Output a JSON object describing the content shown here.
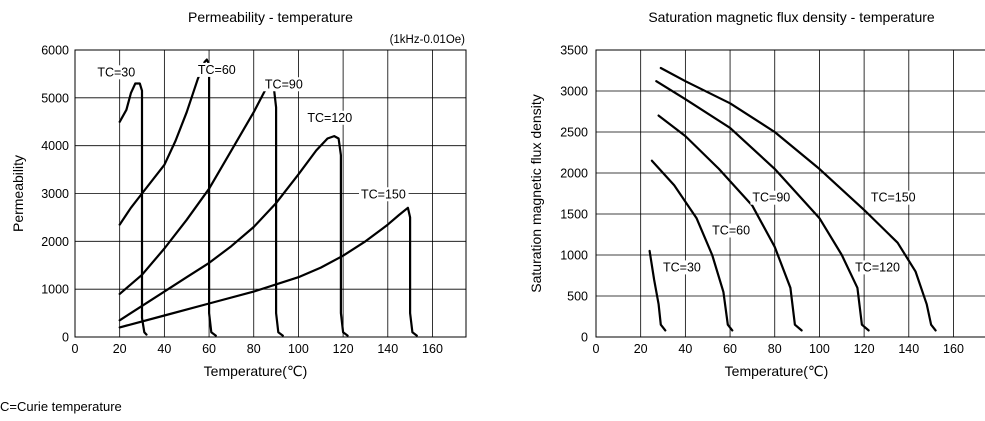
{
  "footnote": "C=Curie temperature",
  "chart_data": [
    {
      "type": "line",
      "title": "Permeability - temperature",
      "subtitle": "(1kHz-0.01Oe)",
      "xlabel": "Temperature(℃)",
      "ylabel": "Permeability",
      "xlim": [
        0,
        175
      ],
      "ylim": [
        0,
        6000
      ],
      "xticks": [
        0,
        20,
        40,
        60,
        80,
        100,
        120,
        140,
        160
      ],
      "yticks": [
        0,
        1000,
        2000,
        3000,
        4000,
        5000,
        6000
      ],
      "grid": true,
      "series": [
        {
          "label": "TC=30",
          "label_at": [
            10,
            5450
          ],
          "points": [
            [
              20,
              4500
            ],
            [
              23,
              4750
            ],
            [
              25,
              5100
            ],
            [
              27,
              5300
            ],
            [
              29,
              5300
            ],
            [
              30,
              5150
            ],
            [
              30,
              2000
            ],
            [
              30,
              400
            ],
            [
              31,
              100
            ],
            [
              32,
              50
            ]
          ]
        },
        {
          "label": "TC=60",
          "label_at": [
            55,
            5500
          ],
          "points": [
            [
              20,
              2350
            ],
            [
              25,
              2700
            ],
            [
              30,
              3000
            ],
            [
              40,
              3600
            ],
            [
              45,
              4100
            ],
            [
              50,
              4700
            ],
            [
              55,
              5400
            ],
            [
              58,
              5750
            ],
            [
              59,
              5800
            ],
            [
              60,
              5700
            ],
            [
              60,
              2000
            ],
            [
              60,
              500
            ],
            [
              61,
              100
            ],
            [
              63,
              30
            ]
          ]
        },
        {
          "label": "TC=90",
          "label_at": [
            85,
            5200
          ],
          "points": [
            [
              20,
              900
            ],
            [
              30,
              1300
            ],
            [
              40,
              1850
            ],
            [
              50,
              2450
            ],
            [
              60,
              3100
            ],
            [
              70,
              3900
            ],
            [
              80,
              4700
            ],
            [
              85,
              5150
            ],
            [
              87,
              5250
            ],
            [
              89,
              5200
            ],
            [
              90,
              4800
            ],
            [
              90,
              2000
            ],
            [
              90,
              500
            ],
            [
              91,
              100
            ],
            [
              93,
              30
            ]
          ]
        },
        {
          "label": "TC=120",
          "label_at": [
            104,
            4500
          ],
          "points": [
            [
              20,
              350
            ],
            [
              30,
              650
            ],
            [
              40,
              950
            ],
            [
              50,
              1250
            ],
            [
              60,
              1550
            ],
            [
              70,
              1900
            ],
            [
              80,
              2300
            ],
            [
              90,
              2800
            ],
            [
              100,
              3400
            ],
            [
              108,
              3900
            ],
            [
              113,
              4150
            ],
            [
              116,
              4200
            ],
            [
              118,
              4150
            ],
            [
              119,
              3800
            ],
            [
              119,
              2000
            ],
            [
              119,
              500
            ],
            [
              120,
              100
            ],
            [
              122,
              30
            ]
          ]
        },
        {
          "label": "TC=150",
          "label_at": [
            128,
            2900
          ],
          "points": [
            [
              20,
              200
            ],
            [
              40,
              450
            ],
            [
              60,
              700
            ],
            [
              80,
              950
            ],
            [
              100,
              1250
            ],
            [
              110,
              1450
            ],
            [
              120,
              1700
            ],
            [
              130,
              2000
            ],
            [
              140,
              2350
            ],
            [
              145,
              2550
            ],
            [
              149,
              2700
            ],
            [
              150,
              2500
            ],
            [
              150,
              2000
            ],
            [
              150,
              500
            ],
            [
              151,
              100
            ],
            [
              153,
              30
            ]
          ]
        }
      ]
    },
    {
      "type": "line",
      "title": "Saturation magnetic flux density - temperature",
      "xlabel": "Temperature(℃)",
      "ylabel": "Saturation magnetic flux density",
      "xlim": [
        0,
        175
      ],
      "ylim": [
        0,
        3500
      ],
      "xticks": [
        0,
        20,
        40,
        60,
        80,
        100,
        120,
        140,
        160
      ],
      "yticks": [
        0,
        500,
        1000,
        1500,
        2000,
        2500,
        3000,
        3500
      ],
      "grid": true,
      "series": [
        {
          "label": "TC=30",
          "label_at": [
            30,
            800
          ],
          "points": [
            [
              24,
              1050
            ],
            [
              26,
              700
            ],
            [
              28,
              400
            ],
            [
              29,
              150
            ],
            [
              31,
              80
            ]
          ]
        },
        {
          "label": "TC=60",
          "label_at": [
            52,
            1250
          ],
          "points": [
            [
              25,
              2150
            ],
            [
              35,
              1850
            ],
            [
              45,
              1450
            ],
            [
              52,
              1000
            ],
            [
              57,
              550
            ],
            [
              59,
              150
            ],
            [
              61,
              80
            ]
          ]
        },
        {
          "label": "TC=90",
          "label_at": [
            70,
            1650
          ],
          "points": [
            [
              28,
              2700
            ],
            [
              40,
              2450
            ],
            [
              55,
              2050
            ],
            [
              70,
              1600
            ],
            [
              80,
              1100
            ],
            [
              87,
              600
            ],
            [
              89,
              150
            ],
            [
              92,
              80
            ]
          ]
        },
        {
          "label": "TC=120",
          "label_at": [
            116,
            800
          ],
          "points": [
            [
              27,
              3120
            ],
            [
              40,
              2900
            ],
            [
              60,
              2550
            ],
            [
              80,
              2050
            ],
            [
              100,
              1450
            ],
            [
              110,
              1000
            ],
            [
              117,
              600
            ],
            [
              119,
              150
            ],
            [
              122,
              80
            ]
          ]
        },
        {
          "label": "TC=150",
          "label_at": [
            123,
            1650
          ],
          "points": [
            [
              29,
              3280
            ],
            [
              40,
              3120
            ],
            [
              60,
              2850
            ],
            [
              80,
              2500
            ],
            [
              100,
              2050
            ],
            [
              120,
              1550
            ],
            [
              135,
              1150
            ],
            [
              143,
              800
            ],
            [
              148,
              400
            ],
            [
              150,
              150
            ],
            [
              152,
              80
            ]
          ]
        }
      ]
    }
  ]
}
